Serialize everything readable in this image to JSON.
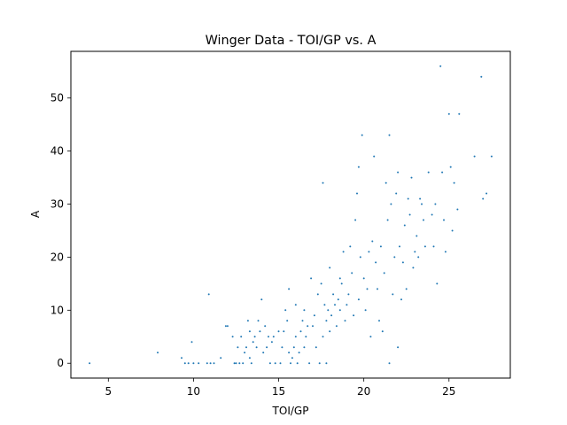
{
  "chart_data": {
    "type": "scatter",
    "title": "Winger Data - TOI/GP vs. A",
    "xlabel": "TOI/GP",
    "ylabel": "A",
    "xlim": [
      2.8,
      28.6
    ],
    "ylim": [
      -2.8,
      58.8
    ],
    "xticks": [
      5,
      10,
      15,
      20,
      25
    ],
    "yticks": [
      0,
      10,
      20,
      30,
      40,
      50
    ],
    "grid": false,
    "marker_color": "#1f77b4",
    "points": [
      [
        3.9,
        0
      ],
      [
        7.9,
        2
      ],
      [
        9.3,
        1
      ],
      [
        9.5,
        0
      ],
      [
        9.7,
        0
      ],
      [
        9.9,
        4
      ],
      [
        10.0,
        0
      ],
      [
        10.3,
        0
      ],
      [
        10.8,
        0
      ],
      [
        10.9,
        13
      ],
      [
        11.0,
        0
      ],
      [
        11.2,
        0
      ],
      [
        11.6,
        1
      ],
      [
        11.9,
        7
      ],
      [
        12.0,
        7
      ],
      [
        12.3,
        5
      ],
      [
        12.4,
        0
      ],
      [
        12.5,
        0
      ],
      [
        12.6,
        3
      ],
      [
        12.7,
        0
      ],
      [
        12.8,
        5
      ],
      [
        12.9,
        0
      ],
      [
        13.0,
        2
      ],
      [
        13.1,
        3
      ],
      [
        13.2,
        8
      ],
      [
        13.3,
        6
      ],
      [
        13.3,
        1
      ],
      [
        13.4,
        0
      ],
      [
        13.5,
        4
      ],
      [
        13.6,
        5
      ],
      [
        13.7,
        3
      ],
      [
        13.8,
        8
      ],
      [
        13.9,
        6
      ],
      [
        14.0,
        12
      ],
      [
        14.1,
        2
      ],
      [
        14.2,
        7
      ],
      [
        14.3,
        3
      ],
      [
        14.4,
        5
      ],
      [
        14.5,
        0
      ],
      [
        14.6,
        4
      ],
      [
        14.7,
        5
      ],
      [
        14.8,
        0
      ],
      [
        15.0,
        6
      ],
      [
        15.1,
        0
      ],
      [
        15.2,
        3
      ],
      [
        15.3,
        6
      ],
      [
        15.4,
        10
      ],
      [
        15.5,
        8
      ],
      [
        15.6,
        14
      ],
      [
        15.6,
        2
      ],
      [
        15.7,
        0
      ],
      [
        15.8,
        1
      ],
      [
        15.9,
        3
      ],
      [
        16.0,
        5
      ],
      [
        16.0,
        11
      ],
      [
        16.1,
        0
      ],
      [
        16.2,
        2
      ],
      [
        16.3,
        6
      ],
      [
        16.4,
        8
      ],
      [
        16.5,
        10
      ],
      [
        16.5,
        3
      ],
      [
        16.6,
        5
      ],
      [
        16.7,
        7
      ],
      [
        16.8,
        0
      ],
      [
        16.9,
        16
      ],
      [
        17.0,
        7
      ],
      [
        17.1,
        9
      ],
      [
        17.2,
        3
      ],
      [
        17.3,
        13
      ],
      [
        17.4,
        0
      ],
      [
        17.5,
        15
      ],
      [
        17.6,
        34
      ],
      [
        17.6,
        5
      ],
      [
        17.7,
        11
      ],
      [
        17.8,
        0
      ],
      [
        17.8,
        8
      ],
      [
        17.9,
        10
      ],
      [
        18.0,
        18
      ],
      [
        18.0,
        6
      ],
      [
        18.1,
        9
      ],
      [
        18.2,
        13
      ],
      [
        18.3,
        11
      ],
      [
        18.4,
        7
      ],
      [
        18.5,
        12
      ],
      [
        18.6,
        16
      ],
      [
        18.6,
        10
      ],
      [
        18.7,
        15
      ],
      [
        18.8,
        21
      ],
      [
        18.9,
        8
      ],
      [
        19.0,
        11
      ],
      [
        19.1,
        13
      ],
      [
        19.2,
        22
      ],
      [
        19.3,
        17
      ],
      [
        19.4,
        9
      ],
      [
        19.5,
        27
      ],
      [
        19.6,
        32
      ],
      [
        19.7,
        37
      ],
      [
        19.7,
        12
      ],
      [
        19.8,
        20
      ],
      [
        19.9,
        43
      ],
      [
        20.0,
        16
      ],
      [
        20.1,
        10
      ],
      [
        20.2,
        14
      ],
      [
        20.3,
        21
      ],
      [
        20.4,
        5
      ],
      [
        20.5,
        23
      ],
      [
        20.6,
        39
      ],
      [
        20.7,
        19
      ],
      [
        20.8,
        14
      ],
      [
        20.9,
        8
      ],
      [
        21.0,
        22
      ],
      [
        21.1,
        6
      ],
      [
        21.2,
        17
      ],
      [
        21.3,
        34
      ],
      [
        21.4,
        27
      ],
      [
        21.5,
        0
      ],
      [
        21.5,
        43
      ],
      [
        21.6,
        30
      ],
      [
        21.7,
        13
      ],
      [
        21.8,
        20
      ],
      [
        21.9,
        32
      ],
      [
        22.0,
        36
      ],
      [
        22.0,
        3
      ],
      [
        22.1,
        22
      ],
      [
        22.2,
        12
      ],
      [
        22.3,
        19
      ],
      [
        22.4,
        26
      ],
      [
        22.5,
        14
      ],
      [
        22.6,
        31
      ],
      [
        22.7,
        28
      ],
      [
        22.8,
        35
      ],
      [
        22.9,
        18
      ],
      [
        23.0,
        21
      ],
      [
        23.1,
        24
      ],
      [
        23.2,
        20
      ],
      [
        23.3,
        31
      ],
      [
        23.4,
        30
      ],
      [
        23.5,
        27
      ],
      [
        23.6,
        22
      ],
      [
        23.8,
        36
      ],
      [
        24.0,
        28
      ],
      [
        24.1,
        22
      ],
      [
        24.2,
        30
      ],
      [
        24.3,
        15
      ],
      [
        24.5,
        56
      ],
      [
        24.6,
        36
      ],
      [
        24.7,
        27
      ],
      [
        24.8,
        21
      ],
      [
        25.0,
        47
      ],
      [
        25.1,
        37
      ],
      [
        25.2,
        25
      ],
      [
        25.3,
        34
      ],
      [
        25.5,
        29
      ],
      [
        25.6,
        47
      ],
      [
        26.5,
        39
      ],
      [
        26.9,
        54
      ],
      [
        27.0,
        31
      ],
      [
        27.2,
        32
      ],
      [
        27.5,
        39
      ]
    ]
  }
}
